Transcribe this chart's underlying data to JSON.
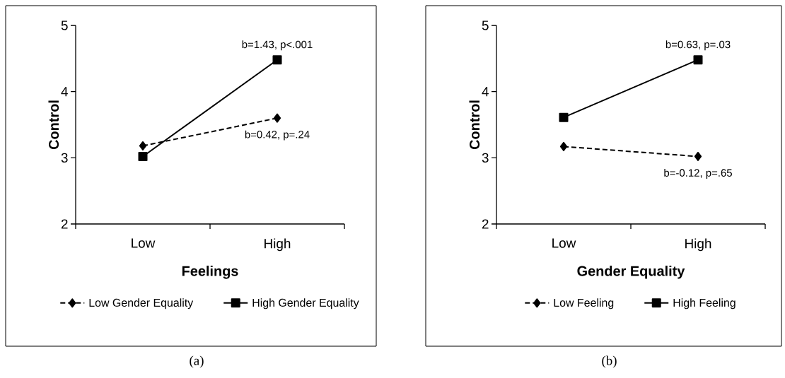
{
  "chart_data": [
    {
      "type": "line",
      "categories": [
        "Low",
        "High"
      ],
      "xlabel": "Feelings",
      "ylabel": "Control",
      "ylim": [
        2,
        5
      ],
      "yticks": [
        2,
        3,
        4,
        5
      ],
      "legend": "bottom",
      "series": [
        {
          "name": "Low Gender Equality",
          "color": "#000000",
          "values": [
            3.18,
            3.6
          ],
          "marker": "diamond",
          "line_style": "dashed"
        },
        {
          "name": "High Gender Equality",
          "color": "#000000",
          "values": [
            3.02,
            4.48
          ],
          "marker": "square",
          "line_style": "solid"
        }
      ],
      "annotations": [
        {
          "text": "b=1.43, p<.001",
          "x": "High",
          "y": 4.48
        },
        {
          "text": "b=0.42, p=.24",
          "x": "High",
          "y": 3.6
        },
        "(a)"
      ]
    },
    {
      "type": "line",
      "categories": [
        "Low",
        "High"
      ],
      "xlabel": "Gender Equality",
      "ylabel": "Control",
      "ylim": [
        2,
        5
      ],
      "yticks": [
        2,
        3,
        4,
        5
      ],
      "legend": "bottom",
      "series": [
        {
          "name": "Low Feeling",
          "color": "#000000",
          "values": [
            3.17,
            3.02
          ],
          "marker": "diamond",
          "line_style": "dashed"
        },
        {
          "name": "High Feeling",
          "color": "#000000",
          "values": [
            3.61,
            4.48
          ],
          "marker": "square",
          "line_style": "solid"
        }
      ],
      "annotations": [
        {
          "text": "b=0.63, p=.03",
          "x": "High",
          "y": 4.48
        },
        {
          "text": "b=-0.12, p=.65",
          "x": "High",
          "y": 3.02
        },
        "(b)"
      ]
    }
  ]
}
